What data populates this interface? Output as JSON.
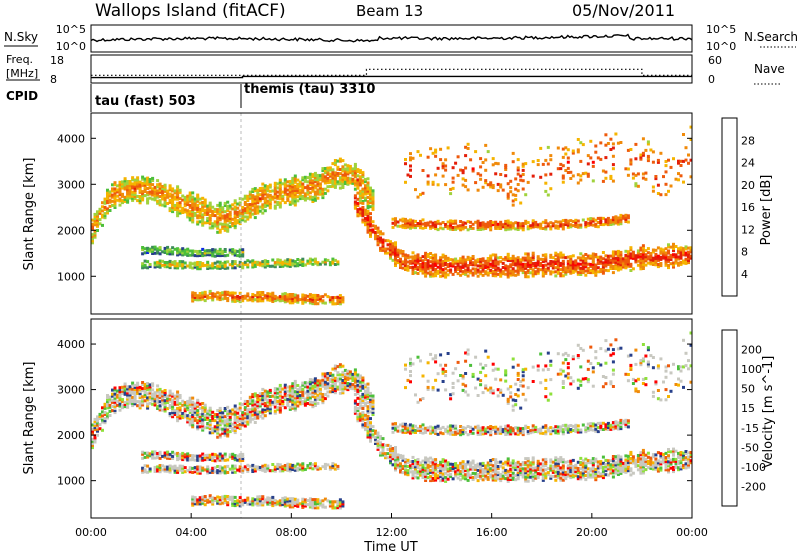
{
  "header": {
    "station": "Wallops Island (fitACF)",
    "beam": "Beam 13",
    "date": "05/Nov/2011"
  },
  "top_panels": {
    "nsky_label": "N.Sky",
    "nsearch_label": "N.Search",
    "nsky_ticks": [
      "10^5",
      "10^0"
    ],
    "nsearch_ticks": [
      "10^5",
      "10^0"
    ],
    "freq_label": [
      "Freq.",
      "[MHz]"
    ],
    "freq_ticks": [
      "18",
      "8"
    ],
    "nave_label": "Nave",
    "nave_ticks": [
      "60",
      "0"
    ],
    "cpid_label": "CPID",
    "cpid_segments": [
      {
        "name": "tau (fast) 503",
        "start_hour": 0
      },
      {
        "name": "themis (tau) 3310",
        "start_hour": 6.05
      }
    ],
    "freq_steps": [
      {
        "from_hour": 0,
        "to_hour": 6.05,
        "mhz": 10.2
      },
      {
        "from_hour": 6.05,
        "to_hour": 24,
        "mhz": 10.8
      }
    ],
    "nave_steps": [
      {
        "from_hour": 0,
        "to_hour": 11,
        "value": 20
      },
      {
        "from_hour": 11,
        "to_hour": 22,
        "value": 38
      },
      {
        "from_hour": 22,
        "to_hour": 24,
        "value": 20
      }
    ]
  },
  "chart_data": [
    {
      "type": "heatmap",
      "panel": "power",
      "ylabel": "Slant Range [km]",
      "colorbar_label": "Power [dB]",
      "colorbar_ticks": [
        "4",
        "8",
        "12",
        "16",
        "20",
        "24",
        "28"
      ],
      "colorbar_colors": [
        "#0a28e6",
        "#27408b",
        "#3c8c5a",
        "#4cbf3a",
        "#a0d23c",
        "#f5b400",
        "#f08a0a",
        "#ee5a0c",
        "#e41e0a",
        "#ff0000"
      ],
      "y_ticks": [
        1000,
        2000,
        3000,
        4000
      ],
      "ylim": [
        180,
        4550
      ],
      "xlim_hours": [
        0,
        24
      ],
      "x_ticks": [
        "00:00",
        "04:00",
        "08:00",
        "12:00",
        "16:00",
        "20:00",
        "00:00"
      ],
      "bands": [
        {
          "x": [
            0,
            0.8,
            1.6,
            2.5,
            3.3,
            4.2,
            5.0,
            5.6,
            6.05,
            7.0,
            8.0,
            9.0,
            9.8,
            10.5,
            11.2
          ],
          "y_center": [
            2050,
            2800,
            2950,
            2900,
            2700,
            2500,
            2300,
            2350,
            2500,
            2800,
            2900,
            3000,
            3300,
            3200,
            2700
          ],
          "half_width": 280,
          "level": 22
        },
        {
          "x": [
            10.5,
            11.5,
            12.5,
            14.0,
            16.0,
            18.0,
            20.0,
            22.0,
            24.0
          ],
          "y_center": [
            2700,
            1800,
            1350,
            1250,
            1250,
            1300,
            1300,
            1450,
            1500
          ],
          "half_width": 220,
          "level": 27
        },
        {
          "x": [
            12.0,
            14.0,
            16.0,
            18.0,
            20.0,
            21.5
          ],
          "y_center": [
            2200,
            2150,
            2150,
            2150,
            2200,
            2300
          ],
          "half_width": 90,
          "level": 26
        },
        {
          "x": [
            2.0,
            3.0,
            4.0,
            5.0,
            6.0,
            7.0,
            8.0,
            9.0,
            9.8
          ],
          "y_center": [
            1300,
            1300,
            1280,
            1280,
            1300,
            1320,
            1330,
            1350,
            1350
          ],
          "half_width": 70,
          "level": 18
        },
        {
          "x": [
            2.0,
            3.0,
            4.0,
            5.0,
            6.0
          ],
          "y_center": [
            1600,
            1600,
            1550,
            1550,
            1550
          ],
          "half_width": 70,
          "level": 15
        },
        {
          "x": [
            4.0,
            5.0,
            6.0,
            7.0,
            8.0,
            9.0,
            10.0
          ],
          "y_center": [
            600,
            620,
            580,
            600,
            560,
            540,
            540
          ],
          "half_width": 90,
          "level": 25
        },
        {
          "x": [
            12.5,
            15.0,
            17.0,
            19.0,
            21.0,
            23.0,
            24.0
          ],
          "y_center": [
            3300,
            3400,
            3100,
            3500,
            3700,
            3200,
            3800
          ],
          "half_width": 500,
          "level": 26,
          "density": 0.12
        }
      ]
    },
    {
      "type": "heatmap",
      "panel": "velocity",
      "ylabel": "Slant Range [km]",
      "colorbar_label": "Velocity [m s^-1]",
      "colorbar_ticks": [
        "200",
        "100",
        "50",
        "15",
        "-15",
        "-50",
        "-100",
        "-200"
      ],
      "colorbar_colors": [
        "#1428c8",
        "#27408b",
        "#3c8c5a",
        "#4cbf3a",
        "#8ee03a",
        "#c8c8c0",
        "#c8c8c0",
        "#f5b400",
        "#f08a0a",
        "#ee5a0c",
        "#ff0000"
      ],
      "y_ticks": [
        1000,
        2000,
        3000,
        4000
      ],
      "ylim": [
        180,
        4550
      ],
      "xlim_hours": [
        0,
        24
      ],
      "x_ticks": [
        "00:00",
        "04:00",
        "08:00",
        "12:00",
        "16:00",
        "20:00",
        "00:00"
      ],
      "xlabel": "Time UT"
    }
  ]
}
